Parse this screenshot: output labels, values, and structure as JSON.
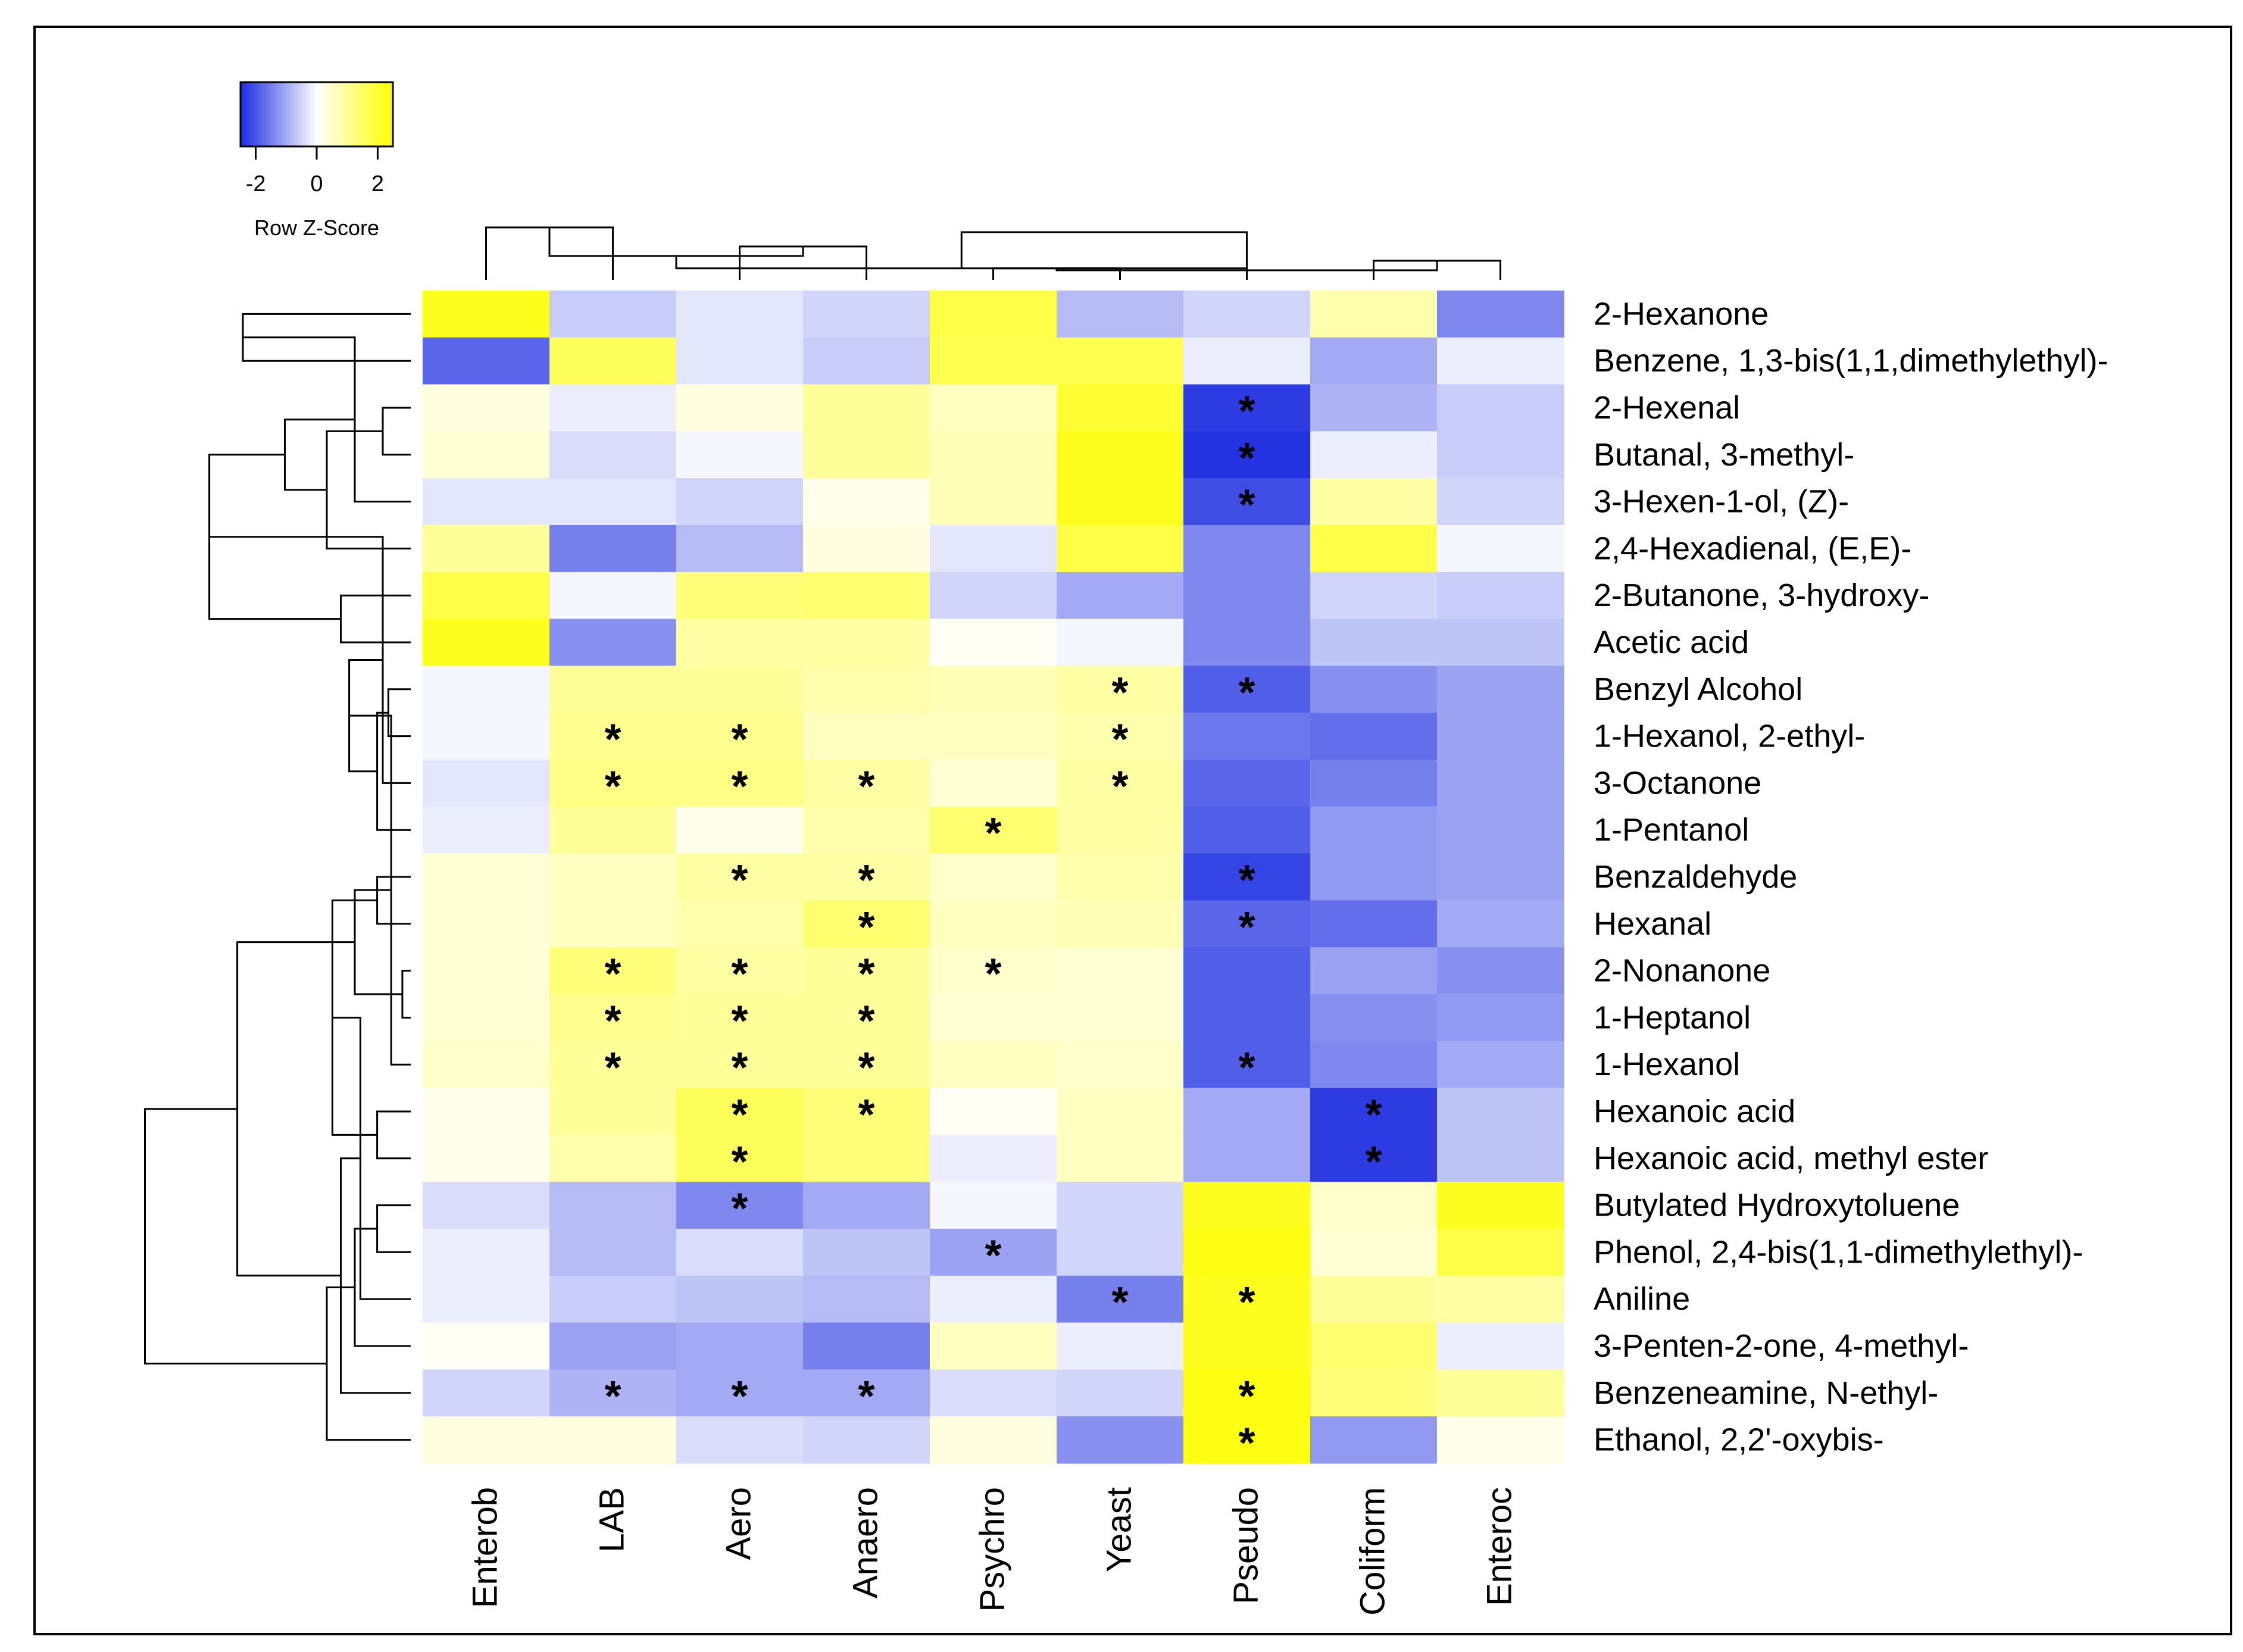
{
  "chart_data": {
    "type": "heatmap",
    "title": "",
    "color_scale": {
      "title": "Row Z-Score",
      "ticks": [
        "-2",
        "0",
        "2"
      ],
      "range": [
        -2.5,
        2.5
      ],
      "low_color": "#1a2be0",
      "mid_color": "#ffffff",
      "high_color": "#ffff00"
    },
    "columns": [
      "Enterob",
      "LAB",
      "Aero",
      "Anaero",
      "Psychro",
      "Yeast",
      "Pseudo",
      "Coliform",
      "Enteroc"
    ],
    "rows": [
      "2-Hexanone",
      "Benzene, 1,3-bis(1,1,dimethylethyl)-",
      "2-Hexenal",
      "Butanal, 3-methyl-",
      "3-Hexen-1-ol, (Z)-",
      "2,4-Hexadienal, (E,E)-",
      "2-Butanone, 3-hydroxy-",
      "Acetic acid",
      "Benzyl Alcohol",
      "1-Hexanol, 2-ethyl-",
      "3-Octanone",
      "1-Pentanol",
      "Benzaldehyde",
      "Hexanal",
      "2-Nonanone",
      "1-Heptanol",
      "1-Hexanol",
      "Hexanoic acid",
      "Hexanoic acid, methyl ester",
      "Butylated Hydroxytoluene",
      "Phenol, 2,4-bis(1,1-dimethylethyl)-",
      "Aniline",
      "3-Penten-2-one, 4-methyl-",
      "Benzeneamine, N-ethyl-",
      "Ethanol, 2,2'-oxybis-"
    ],
    "values": [
      [
        2.2,
        -0.6,
        -0.3,
        -0.5,
        1.8,
        -0.8,
        -0.5,
        0.8,
        -1.4
      ],
      [
        -1.8,
        1.6,
        -0.3,
        -0.6,
        1.7,
        1.7,
        -0.2,
        -1.0,
        -0.2
      ],
      [
        0.3,
        -0.2,
        0.3,
        1.0,
        0.6,
        2.0,
        -2.3,
        -0.9,
        -0.6
      ],
      [
        0.4,
        -0.4,
        -0.1,
        1.0,
        0.7,
        2.2,
        -2.4,
        -0.2,
        -0.6
      ],
      [
        -0.3,
        -0.3,
        -0.5,
        0.2,
        0.7,
        2.2,
        -2.1,
        0.9,
        -0.5
      ],
      [
        1.0,
        -1.5,
        -0.8,
        0.3,
        -0.3,
        1.8,
        -1.4,
        1.8,
        -0.1
      ],
      [
        1.8,
        -0.1,
        1.3,
        1.4,
        -0.5,
        -1.0,
        -1.4,
        -0.5,
        -0.6
      ],
      [
        2.2,
        -1.3,
        0.9,
        0.9,
        0.1,
        -0.1,
        -1.4,
        -0.7,
        -0.7
      ],
      [
        -0.1,
        1.0,
        1.0,
        0.8,
        0.7,
        0.9,
        -1.9,
        -1.3,
        -1.1
      ],
      [
        -0.1,
        1.1,
        1.1,
        0.6,
        0.6,
        0.8,
        -1.6,
        -1.7,
        -1.1
      ],
      [
        -0.3,
        1.2,
        1.2,
        0.9,
        0.4,
        0.9,
        -1.8,
        -1.5,
        -1.1
      ],
      [
        -0.2,
        1.0,
        0.2,
        0.8,
        1.4,
        0.9,
        -1.9,
        -1.2,
        -1.1
      ],
      [
        0.4,
        0.6,
        0.9,
        0.9,
        0.5,
        0.8,
        -2.2,
        -1.2,
        -1.1
      ],
      [
        0.4,
        0.6,
        0.8,
        1.4,
        0.6,
        0.7,
        -1.8,
        -1.7,
        -1.0
      ],
      [
        0.4,
        1.3,
        0.9,
        1.0,
        0.5,
        0.4,
        -1.9,
        -1.1,
        -1.3
      ],
      [
        0.4,
        1.1,
        1.0,
        1.0,
        0.4,
        0.4,
        -1.9,
        -1.3,
        -1.2
      ],
      [
        0.5,
        1.0,
        1.0,
        1.0,
        0.6,
        0.5,
        -1.9,
        -1.4,
        -1.0
      ],
      [
        0.2,
        1.0,
        1.6,
        1.3,
        0.1,
        0.6,
        -1.0,
        -2.3,
        -0.7
      ],
      [
        0.2,
        0.8,
        1.6,
        1.3,
        -0.2,
        0.6,
        -1.0,
        -2.3,
        -0.7
      ],
      [
        -0.4,
        -0.8,
        -1.4,
        -1.0,
        -0.1,
        -0.5,
        2.2,
        0.5,
        2.2
      ],
      [
        -0.2,
        -0.8,
        -0.4,
        -0.7,
        -1.1,
        -0.5,
        2.3,
        0.4,
        1.8
      ],
      [
        -0.2,
        -0.6,
        -0.7,
        -0.8,
        -0.2,
        -1.5,
        2.2,
        1.0,
        0.9
      ],
      [
        0.1,
        -1.1,
        -1.0,
        -1.5,
        0.6,
        -0.2,
        2.2,
        1.4,
        -0.2
      ],
      [
        -0.5,
        -0.9,
        -1.0,
        -1.0,
        -0.4,
        -0.5,
        2.3,
        1.3,
        1.0
      ],
      [
        0.3,
        0.3,
        -0.4,
        -0.5,
        0.3,
        -1.3,
        2.3,
        -1.2,
        0.2
      ]
    ],
    "significance_marker": "*",
    "significant_cells": [
      [
        2,
        6
      ],
      [
        3,
        6
      ],
      [
        4,
        6
      ],
      [
        8,
        5
      ],
      [
        8,
        6
      ],
      [
        9,
        1
      ],
      [
        9,
        2
      ],
      [
        9,
        5
      ],
      [
        10,
        1
      ],
      [
        10,
        2
      ],
      [
        10,
        3
      ],
      [
        10,
        5
      ],
      [
        11,
        4
      ],
      [
        12,
        2
      ],
      [
        12,
        3
      ],
      [
        12,
        6
      ],
      [
        13,
        3
      ],
      [
        13,
        6
      ],
      [
        14,
        1
      ],
      [
        14,
        2
      ],
      [
        14,
        3
      ],
      [
        14,
        4
      ],
      [
        15,
        1
      ],
      [
        15,
        2
      ],
      [
        15,
        3
      ],
      [
        16,
        1
      ],
      [
        16,
        2
      ],
      [
        16,
        3
      ],
      [
        16,
        6
      ],
      [
        17,
        2
      ],
      [
        17,
        3
      ],
      [
        17,
        7
      ],
      [
        18,
        2
      ],
      [
        18,
        7
      ],
      [
        19,
        2
      ],
      [
        20,
        4
      ],
      [
        21,
        5
      ],
      [
        21,
        6
      ],
      [
        23,
        1
      ],
      [
        23,
        2
      ],
      [
        23,
        3
      ],
      [
        23,
        6
      ],
      [
        24,
        6
      ]
    ],
    "column_dendrogram": [
      [
        0,
        1,
        0.55
      ],
      [
        2,
        3,
        0.35
      ],
      [
        9,
        10,
        0.25
      ],
      [
        4,
        5,
        0.12
      ],
      [
        7,
        8,
        0.2
      ],
      [
        11,
        6,
        0.12
      ],
      [
        12,
        13,
        0.1
      ],
      [
        14,
        15,
        0.5
      ]
    ],
    "row_dendrogram": [
      [
        0,
        1,
        0.6
      ],
      [
        2,
        3,
        0.1
      ],
      [
        25,
        4,
        0.2
      ],
      [
        26,
        5,
        0.3
      ],
      [
        6,
        7,
        0.25
      ],
      [
        27,
        28,
        0.45
      ],
      [
        29,
        30,
        0.72
      ],
      [
        8,
        9,
        0.08
      ],
      [
        31,
        10,
        0.1
      ],
      [
        32,
        11,
        0.12
      ],
      [
        12,
        13,
        0.12
      ],
      [
        33,
        34,
        0.22
      ],
      [
        14,
        15,
        0.03
      ],
      [
        36,
        16,
        0.07
      ],
      [
        17,
        18,
        0.12
      ],
      [
        37,
        38,
        0.2
      ],
      [
        35,
        39,
        0.28
      ],
      [
        19,
        20,
        0.12
      ],
      [
        41,
        21,
        0.18
      ],
      [
        42,
        22,
        0.2
      ],
      [
        43,
        23,
        0.25
      ],
      [
        44,
        24,
        0.3
      ],
      [
        40,
        45,
        0.62
      ],
      [
        46,
        47,
        0.95
      ]
    ]
  }
}
